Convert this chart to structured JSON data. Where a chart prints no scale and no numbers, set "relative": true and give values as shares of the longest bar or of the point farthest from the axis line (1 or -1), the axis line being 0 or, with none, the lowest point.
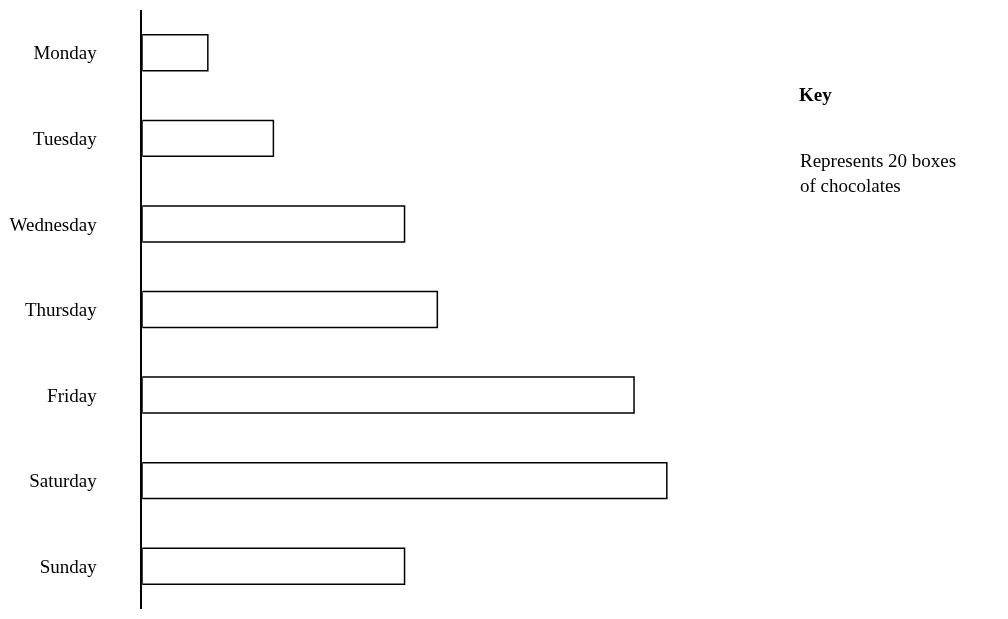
{
  "chart_data": {
    "type": "bar",
    "orientation": "horizontal",
    "relative": true,
    "categories": [
      "Monday",
      "Tuesday",
      "Wednesday",
      "Thursday",
      "Friday",
      "Saturday",
      "Sunday"
    ],
    "values": [
      0.125,
      0.25,
      0.5,
      0.5625,
      0.9375,
      1,
      0.5
    ],
    "color": "#ffffff",
    "annotations": [
      "Key",
      "Represents 20 boxes\nof chocolates"
    ],
    "legend": false
  }
}
